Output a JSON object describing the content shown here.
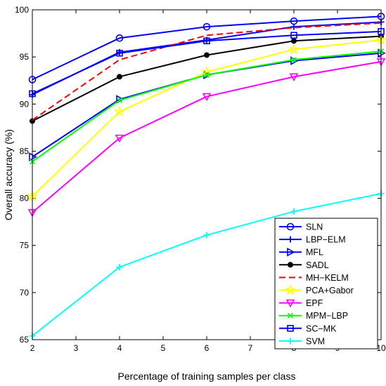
{
  "chart_data": {
    "type": "line",
    "xlabel": "Percentage of training samples per class",
    "ylabel": "Overall accuracy (%)",
    "xlim": [
      2,
      10
    ],
    "ylim": [
      65,
      100
    ],
    "xticks": [
      "2",
      "3",
      "4",
      "5",
      "6",
      "7",
      "8",
      "9",
      "10"
    ],
    "yticks": [
      "65",
      "70",
      "75",
      "80",
      "85",
      "90",
      "95",
      "100"
    ],
    "x": [
      2,
      4,
      6,
      8,
      10
    ],
    "grid": false,
    "legend_position": "bottom-right",
    "series": [
      {
        "name": "SLN",
        "color": "#0000ff",
        "dash": "solid",
        "marker": "circle",
        "values": [
          92.6,
          97.0,
          98.2,
          98.8,
          99.3
        ]
      },
      {
        "name": "LBP−ELM",
        "color": "#0000ff",
        "dash": "solid",
        "marker": "plus",
        "values": [
          91.0,
          95.5,
          96.8,
          98.2,
          98.7
        ]
      },
      {
        "name": "MFL",
        "color": "#0000ff",
        "dash": "solid",
        "marker": "triangle-right",
        "values": [
          84.4,
          90.5,
          93.1,
          94.6,
          95.4
        ]
      },
      {
        "name": "SADL",
        "color": "#000000",
        "dash": "solid",
        "marker": "dot",
        "values": [
          88.2,
          92.9,
          95.2,
          96.7,
          97.2
        ]
      },
      {
        "name": "MH−KELM",
        "color": "#ff0000",
        "dash": "dashed",
        "marker": "none",
        "values": [
          88.3,
          94.7,
          97.3,
          98.1,
          98.6
        ]
      },
      {
        "name": "PCA+Gabor",
        "color": "#ffff00",
        "dash": "solid",
        "marker": "star",
        "values": [
          80.2,
          89.2,
          93.4,
          95.8,
          96.8
        ]
      },
      {
        "name": "EPF",
        "color": "#ff00ff",
        "dash": "solid",
        "marker": "triangle-down",
        "values": [
          78.5,
          86.4,
          90.8,
          92.9,
          94.5
        ]
      },
      {
        "name": "MPM−LBP",
        "color": "#00ff00",
        "dash": "solid",
        "marker": "x",
        "values": [
          83.9,
          90.4,
          93.1,
          94.7,
          95.6
        ]
      },
      {
        "name": "SC−MK",
        "color": "#0000ff",
        "dash": "solid",
        "marker": "square",
        "values": [
          91.1,
          95.4,
          96.7,
          97.3,
          97.7
        ]
      },
      {
        "name": "SVM",
        "color": "#00ffff",
        "dash": "solid",
        "marker": "plus",
        "values": [
          65.4,
          72.7,
          76.1,
          78.6,
          80.5
        ]
      }
    ]
  }
}
